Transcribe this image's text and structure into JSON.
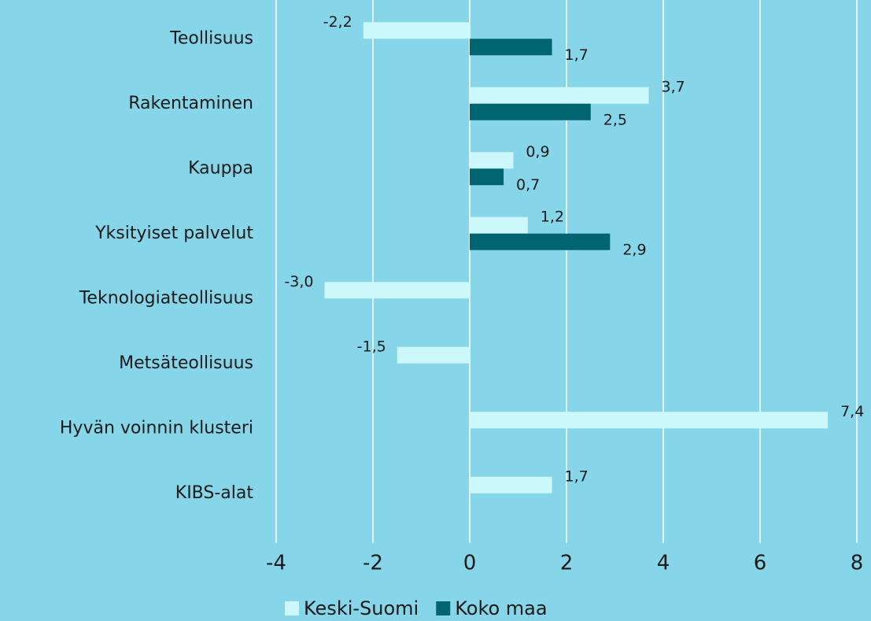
{
  "chart_data": {
    "type": "bar",
    "orientation": "horizontal",
    "categories": [
      "Teollisuus",
      "Rakentaminen",
      "Kauppa",
      "Yksityiset palvelut",
      "Teknologiateollisuus",
      "Metsäteollisuus",
      "Hyvän voinnin klusteri",
      "KIBS-alat"
    ],
    "series": [
      {
        "name": "Keski-Suomi",
        "color": "#ccf7fb",
        "values": [
          -2.2,
          3.7,
          0.9,
          1.2,
          -3.0,
          -1.5,
          7.4,
          1.7
        ],
        "value_labels": [
          "-2,2",
          "3,7",
          "0,9",
          "1,2",
          "-3,0",
          "-1,5",
          "7,4",
          "1,7"
        ]
      },
      {
        "name": "Koko maa",
        "color": "#006570",
        "values": [
          1.7,
          2.5,
          0.7,
          2.9,
          null,
          null,
          null,
          null
        ],
        "value_labels": [
          "1,7",
          "2,5",
          "0,7",
          "2,9",
          null,
          null,
          null,
          null
        ]
      }
    ],
    "xlim": [
      -4,
      8
    ],
    "xticks": [
      -4,
      -2,
      0,
      2,
      4,
      6,
      8
    ],
    "grid": true,
    "legend": "bottom"
  }
}
